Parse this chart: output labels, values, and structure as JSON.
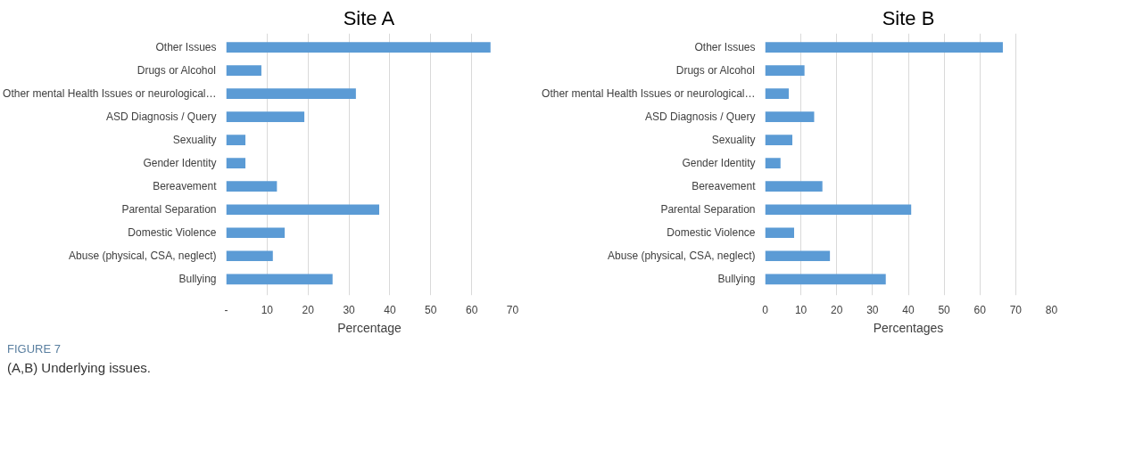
{
  "chart_data": [
    {
      "type": "bar",
      "orientation": "horizontal",
      "title": "Site A",
      "xlabel": "Percentage",
      "categories": [
        "Other Issues",
        "Drugs or Alcohol",
        "Other mental Health Issues or neurological…",
        "ASD Diagnosis / Query",
        "Sexuality",
        "Gender Identity",
        "Bereavement",
        "Parental Separation",
        "Domestic Violence",
        "Abuse (physical, CSA, neglect)",
        "Bullying"
      ],
      "values": [
        64.6,
        8.6,
        31.7,
        19.1,
        4.7,
        4.7,
        12.4,
        37.4,
        14.3,
        11.4,
        26.0
      ],
      "color": "#5b9bd5",
      "xlim": [
        0,
        70
      ],
      "xticks": [
        {
          "value": 0,
          "label": "-"
        },
        10,
        20,
        30,
        40,
        50,
        60,
        70
      ],
      "grid": "x"
    },
    {
      "type": "bar",
      "orientation": "horizontal",
      "title": "Site B",
      "xlabel": "Percentages",
      "categories": [
        "Other Issues",
        "Drugs or Alcohol",
        "Other mental Health Issues or neurological…",
        "ASD Diagnosis / Query",
        "Sexuality",
        "Gender Identity",
        "Bereavement",
        "Parental Separation",
        "Domestic Violence",
        "Abuse (physical, CSA, neglect)",
        "Bullying"
      ],
      "values": [
        66.4,
        11.0,
        6.6,
        13.7,
        7.6,
        4.3,
        16.0,
        40.8,
        8.1,
        18.1,
        33.7
      ],
      "color": "#5b9bd5",
      "xlim": [
        0,
        80
      ],
      "xticks": [
        0,
        10,
        20,
        30,
        40,
        50,
        60,
        70,
        80
      ],
      "grid": "x",
      "annotations": [
        "FIGURE 7",
        "(A,B) Underlying issues."
      ]
    }
  ]
}
